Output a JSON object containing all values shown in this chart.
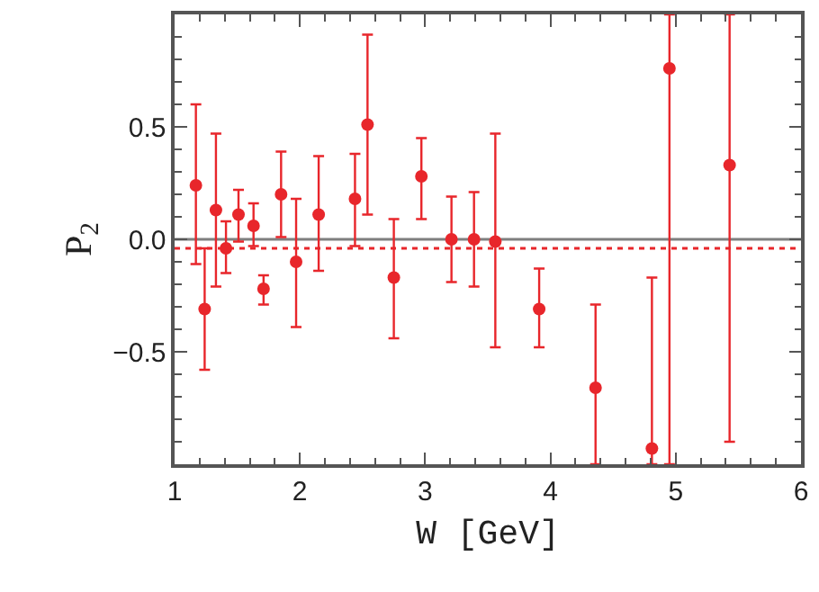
{
  "chart_data": {
    "type": "scatter",
    "xlabel": "W [GeV]",
    "ylabel": "P$_{2}$",
    "x": [
      1.17,
      1.24,
      1.33,
      1.41,
      1.51,
      1.63,
      1.71,
      1.85,
      1.97,
      2.15,
      2.44,
      2.54,
      2.75,
      2.97,
      3.21,
      3.39,
      3.56,
      3.91,
      4.36,
      4.81,
      4.95,
      5.43
    ],
    "series": [
      {
        "color": "#e8262b",
        "values": [
          0.24,
          -0.31,
          0.13,
          -0.04,
          0.11,
          0.06,
          -0.22,
          0.2,
          -0.1,
          0.11,
          0.18,
          0.51,
          -0.17,
          0.28,
          0.0,
          0.0,
          -0.01,
          -0.31,
          -0.66,
          -0.93,
          0.76,
          0.33
        ],
        "errors": [
          [
            -0.11,
            0.6
          ],
          [
            -0.58,
            -0.04
          ],
          [
            -0.21,
            0.47
          ],
          [
            -0.15,
            0.08
          ],
          [
            -0.01,
            0.22
          ],
          [
            -0.03,
            0.16
          ],
          [
            -0.29,
            -0.16
          ],
          [
            0.01,
            0.39
          ],
          [
            -0.39,
            0.18
          ],
          [
            -0.14,
            0.37
          ],
          [
            -0.03,
            0.38
          ],
          [
            0.11,
            0.91
          ],
          [
            -0.44,
            0.09
          ],
          [
            0.09,
            0.45
          ],
          [
            -0.19,
            0.19
          ],
          [
            -0.21,
            0.21
          ],
          [
            -0.48,
            0.47
          ],
          [
            -0.48,
            -0.13
          ],
          [
            -1.0,
            -0.29
          ],
          [
            -1.0,
            -0.17
          ],
          [
            -1.0,
            1.0
          ],
          [
            -0.9,
            1.0
          ]
        ]
      }
    ],
    "marker": "circle",
    "xlim": [
      1,
      6
    ],
    "xticks": [
      1,
      2,
      3,
      4,
      5,
      6
    ],
    "ylim": [
      -1,
      1
    ],
    "yticks": [
      {
        "value": -0.5,
        "label": "−0.5"
      },
      {
        "value": 0,
        "label": "0.0"
      },
      {
        "value": 0.5,
        "label": "0.5"
      }
    ],
    "ref_lines": [
      {
        "axis": "y",
        "value": 0,
        "color": "#7f7f7f",
        "line_style": "solid"
      },
      {
        "axis": "y",
        "value": -0.04,
        "color": "#e8262b",
        "line_style": "dotted"
      }
    ]
  }
}
